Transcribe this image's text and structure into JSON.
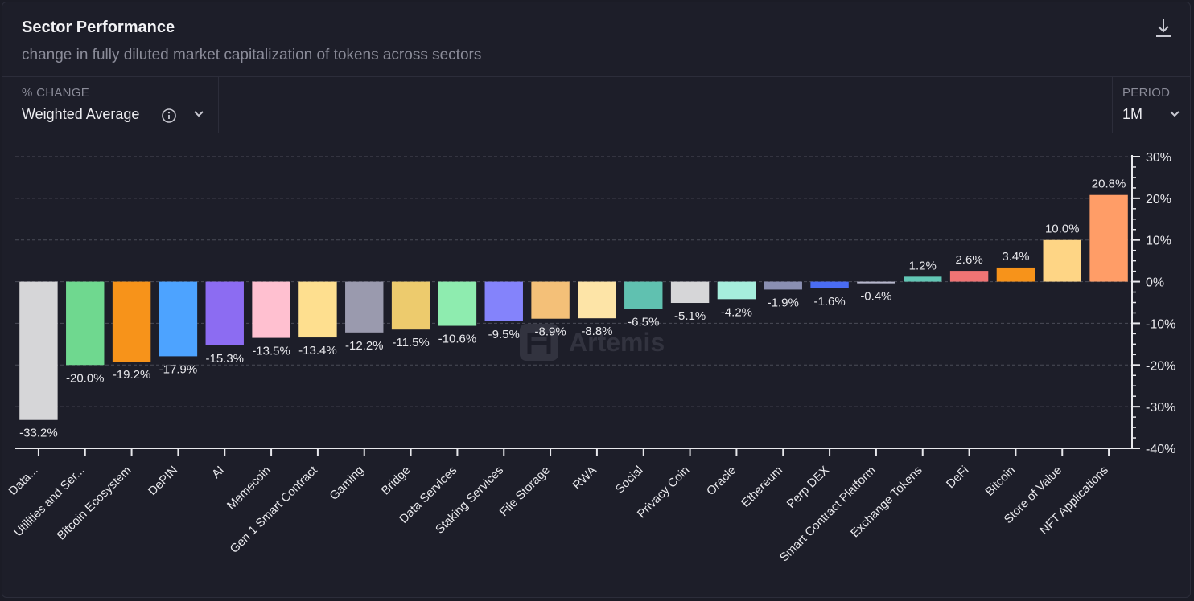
{
  "header": {
    "title": "Sector Performance",
    "subtitle": "change in fully diluted market capitalization of tokens across sectors",
    "download_icon": "download-icon"
  },
  "controls": {
    "change_label": "% CHANGE",
    "change_value": "Weighted Average",
    "info_icon": "info-icon",
    "period_label": "PERIOD",
    "period_value": "1M"
  },
  "watermark": "Artemis",
  "colors": {
    "background": "#1d1e29",
    "grid": "#4a4b57",
    "axis": "#e8e8ec"
  },
  "chart_data": {
    "type": "bar",
    "categories": [
      "Data...",
      "Utilities and Ser...",
      "Bitcoin Ecosystem",
      "DePIN",
      "AI",
      "Memecoin",
      "Gen 1 Smart Contract",
      "Gaming",
      "Bridge",
      "Data Services",
      "Staking Services",
      "File Storage",
      "RWA",
      "Social",
      "Privacy Coin",
      "Oracle",
      "Ethereum",
      "Perp DEX",
      "Smart Contract Platform",
      "Exchange Tokens",
      "DeFi",
      "Bitcoin",
      "Store of Value",
      "NFT Applications"
    ],
    "values": [
      -33.2,
      -20.0,
      -19.2,
      -17.9,
      -15.3,
      -13.5,
      -13.4,
      -12.2,
      -11.5,
      -10.6,
      -9.5,
      -8.9,
      -8.8,
      -6.5,
      -5.1,
      -4.2,
      -1.9,
      -1.6,
      -0.4,
      1.2,
      2.6,
      3.4,
      10.0,
      20.8
    ],
    "data_labels": [
      "-33.2%",
      "-20.0%",
      "-19.2%",
      "-17.9%",
      "-15.3%",
      "-13.5%",
      "-13.4%",
      "-12.2%",
      "-11.5%",
      "-10.6%",
      "-9.5%",
      "-8.9%",
      "-8.8%",
      "-6.5%",
      "-5.1%",
      "-4.2%",
      "-1.9%",
      "-1.6%",
      "-0.4%",
      "1.2%",
      "2.6%",
      "3.4%",
      "10.0%",
      "20.8%"
    ],
    "bar_colors": [
      "#d6d6d8",
      "#6fd88f",
      "#f7931a",
      "#4da3ff",
      "#8c6cf2",
      "#ffc0d0",
      "#fedf8f",
      "#9a9aae",
      "#edcb6d",
      "#8eecaf",
      "#8483fb",
      "#f4c078",
      "#fde4a7",
      "#60c1b0",
      "#d6d6d8",
      "#a6eedc",
      "#8a8fb2",
      "#4a6cf2",
      "#b7b7cc",
      "#62c6b5",
      "#f07474",
      "#f7931a",
      "#fed585",
      "#ff9d67"
    ],
    "ylim": [
      -40,
      30
    ],
    "yticks": [
      30,
      20,
      10,
      0,
      -10,
      -20,
      -30,
      -40
    ],
    "ytick_labels": [
      "30%",
      "20%",
      "10%",
      "0%",
      "-10%",
      "-20%",
      "-30%",
      "-40%"
    ],
    "grid": true,
    "y_axis_position": "right"
  }
}
